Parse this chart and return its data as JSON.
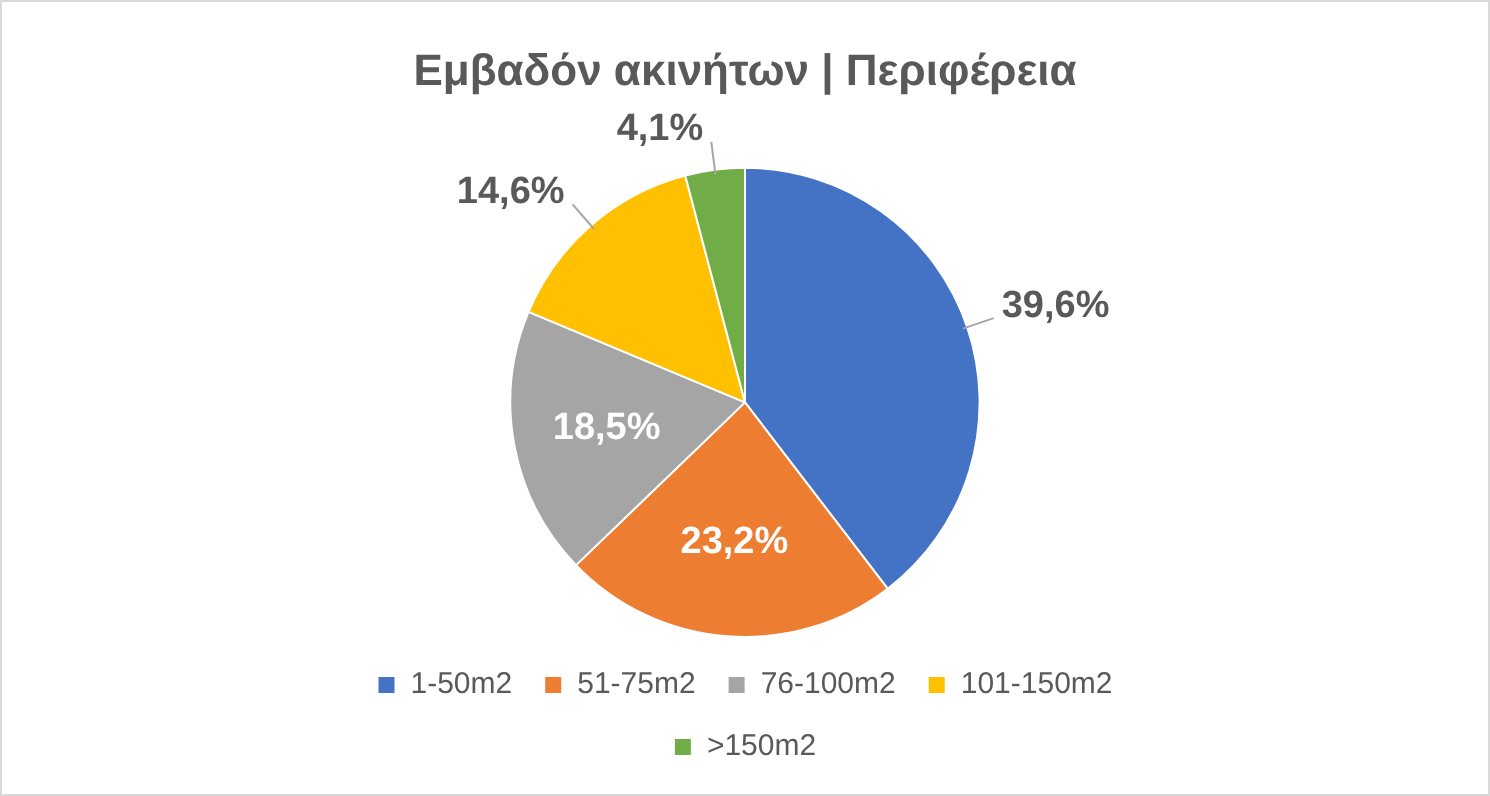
{
  "chart_data": {
    "type": "pie",
    "title": "Εμβαδόν ακινήτων | Περιφέρεια",
    "categories": [
      "1-50m2",
      "51-75m2",
      "76-100m2",
      "101-150m2",
      ">150m2"
    ],
    "values": [
      39.6,
      23.2,
      18.5,
      14.6,
      4.1
    ],
    "colors": [
      "#4472c4",
      "#ed7d31",
      "#a5a5a5",
      "#ffc000",
      "#70ad47"
    ],
    "value_labels": [
      "39,6%",
      "23,2%",
      "18,5%",
      "14,6%",
      "4,1%"
    ],
    "legend": "bottom"
  }
}
